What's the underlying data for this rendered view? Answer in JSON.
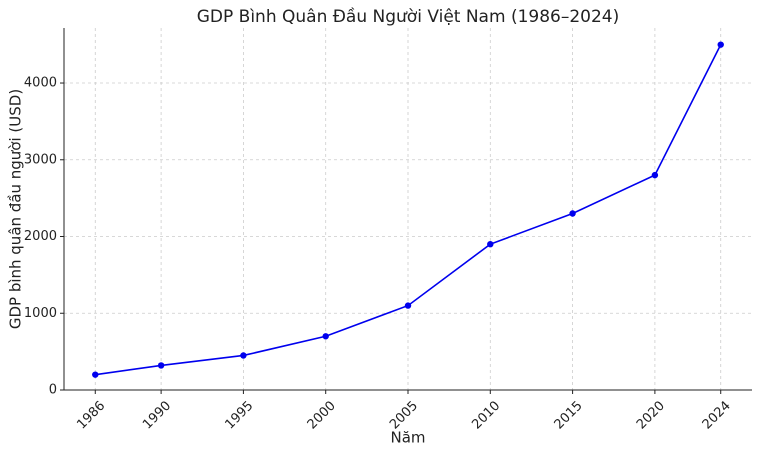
{
  "chart_data": {
    "type": "line",
    "title": "GDP Bình Quân Đầu Người Việt Nam (1986–2024)",
    "x_label": "Năm",
    "y_label": "GDP bình quân đầu người (USD)",
    "x": [
      1986,
      1990,
      1995,
      2000,
      2005,
      2010,
      2015,
      2020,
      2024
    ],
    "series": [
      {
        "name": "GDP bình quân đầu người",
        "color": "#0000ee",
        "values": [
          200,
          320,
          450,
          700,
          1100,
          1900,
          2300,
          2800,
          4500
        ]
      }
    ],
    "xlim": [
      1984.1,
      2025.9
    ],
    "xticks": [
      1986,
      1990,
      1995,
      2000,
      2005,
      2010,
      2015,
      2020,
      2024
    ],
    "ylim": [
      0,
      4717
    ],
    "yticks": [
      0,
      1000,
      2000,
      3000,
      4000
    ],
    "grid": true,
    "markers": true
  }
}
